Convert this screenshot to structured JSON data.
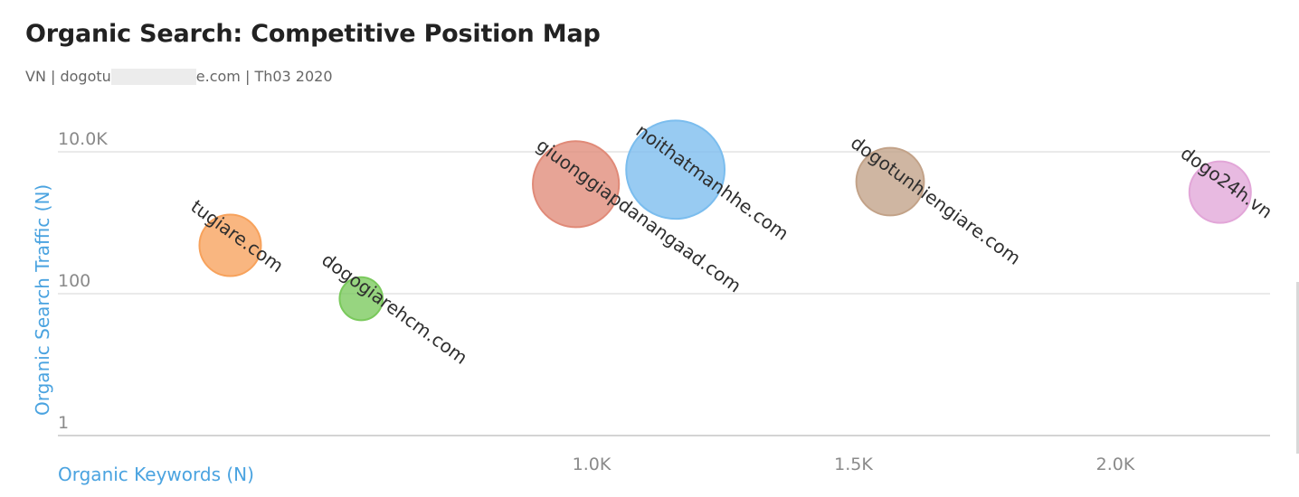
{
  "title": "Organic Search: Competitive Position Map",
  "subtitle": {
    "prefix": "VN | dogotu",
    "suffix": "e.com | Th03 2020"
  },
  "chart_data": {
    "type": "scatter",
    "title": "Organic Search: Competitive Position Map",
    "xlabel": "Organic Keywords (N)",
    "ylabel": "Organic Search Traffic (N)",
    "xlim": [
      0,
      2300
    ],
    "ylim": [
      1,
      10000
    ],
    "y_scale": "log",
    "x_ticks": [
      "1.0K",
      "1.5K",
      "2.0K"
    ],
    "y_ticks": [
      "10.0K",
      "100",
      "1"
    ],
    "grid": "horizontal",
    "legend": "none",
    "series": [
      {
        "name": "tugiare.com",
        "x": 310,
        "y": 480,
        "size": 1,
        "color": "#f7a25c"
      },
      {
        "name": "dogogiarehcm.com",
        "x": 560,
        "y": 85,
        "size": 0.7,
        "color": "#7ac95c"
      },
      {
        "name": "giuonggiapdanangaad.com",
        "x": 970,
        "y": 3500,
        "size": 1.4,
        "color": "#e08a78"
      },
      {
        "name": "noithatmanhhe.com",
        "x": 1160,
        "y": 5600,
        "size": 1.6,
        "color": "#7bbdee"
      },
      {
        "name": "dogotunhiengiare.com",
        "x": 1570,
        "y": 3800,
        "size": 1.1,
        "color": "#c2a288"
      },
      {
        "name": "dogo24h.vn",
        "x": 2200,
        "y": 2700,
        "size": 1.0,
        "color": "#e2a6d8"
      }
    ]
  }
}
